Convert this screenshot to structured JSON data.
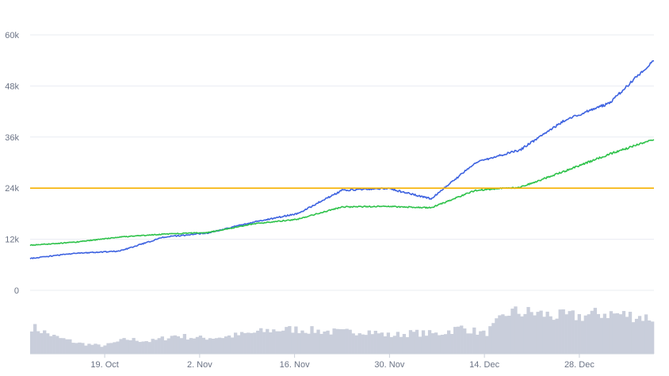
{
  "chart_data": {
    "type": "line",
    "title": "",
    "xlabel": "",
    "ylabel": "",
    "ylim": [
      0,
      60000
    ],
    "y_ticks": [
      "0",
      "12k",
      "24k",
      "36k",
      "48k",
      "60k"
    ],
    "x_ticks": [
      "19. Oct",
      "2. Nov",
      "16. Nov",
      "30. Nov",
      "14. Dec",
      "28. Dec"
    ],
    "grid": true,
    "legend": "none",
    "reference_line": {
      "value": 24000,
      "color": "#f5b100"
    },
    "x": [
      "2020-10-08",
      "2020-10-15",
      "2020-10-22",
      "2020-10-29",
      "2020-11-05",
      "2020-11-12",
      "2020-11-19",
      "2020-11-26",
      "2020-12-03",
      "2020-12-10",
      "2020-12-17",
      "2020-12-24",
      "2020-12-31",
      "2021-01-07",
      "2021-01-08"
    ],
    "series": [
      {
        "color": "#3d62e0",
        "values": [
          7500,
          8700,
          9200,
          12500,
          13500,
          16000,
          18000,
          23500,
          24000,
          21500,
          30000,
          33000,
          40000,
          44000,
          54000
        ]
      },
      {
        "color": "#2ec24a",
        "values": [
          10600,
          11300,
          12500,
          13200,
          13600,
          15600,
          16700,
          19600,
          19700,
          19400,
          23500,
          24200,
          28000,
          32000,
          35500
        ]
      }
    ],
    "volume": {
      "color": "#c9cedb",
      "values": [
        0.52,
        0.32,
        0.2,
        0.15,
        0.28,
        0.24,
        0.35,
        0.3,
        0.32,
        0.38,
        0.45,
        0.47,
        0.44,
        0.41,
        0.44,
        0.35,
        0.4,
        0.38,
        0.5,
        0.38,
        0.8,
        0.78,
        0.72,
        0.72,
        0.78,
        0.74,
        0.68
      ]
    }
  }
}
